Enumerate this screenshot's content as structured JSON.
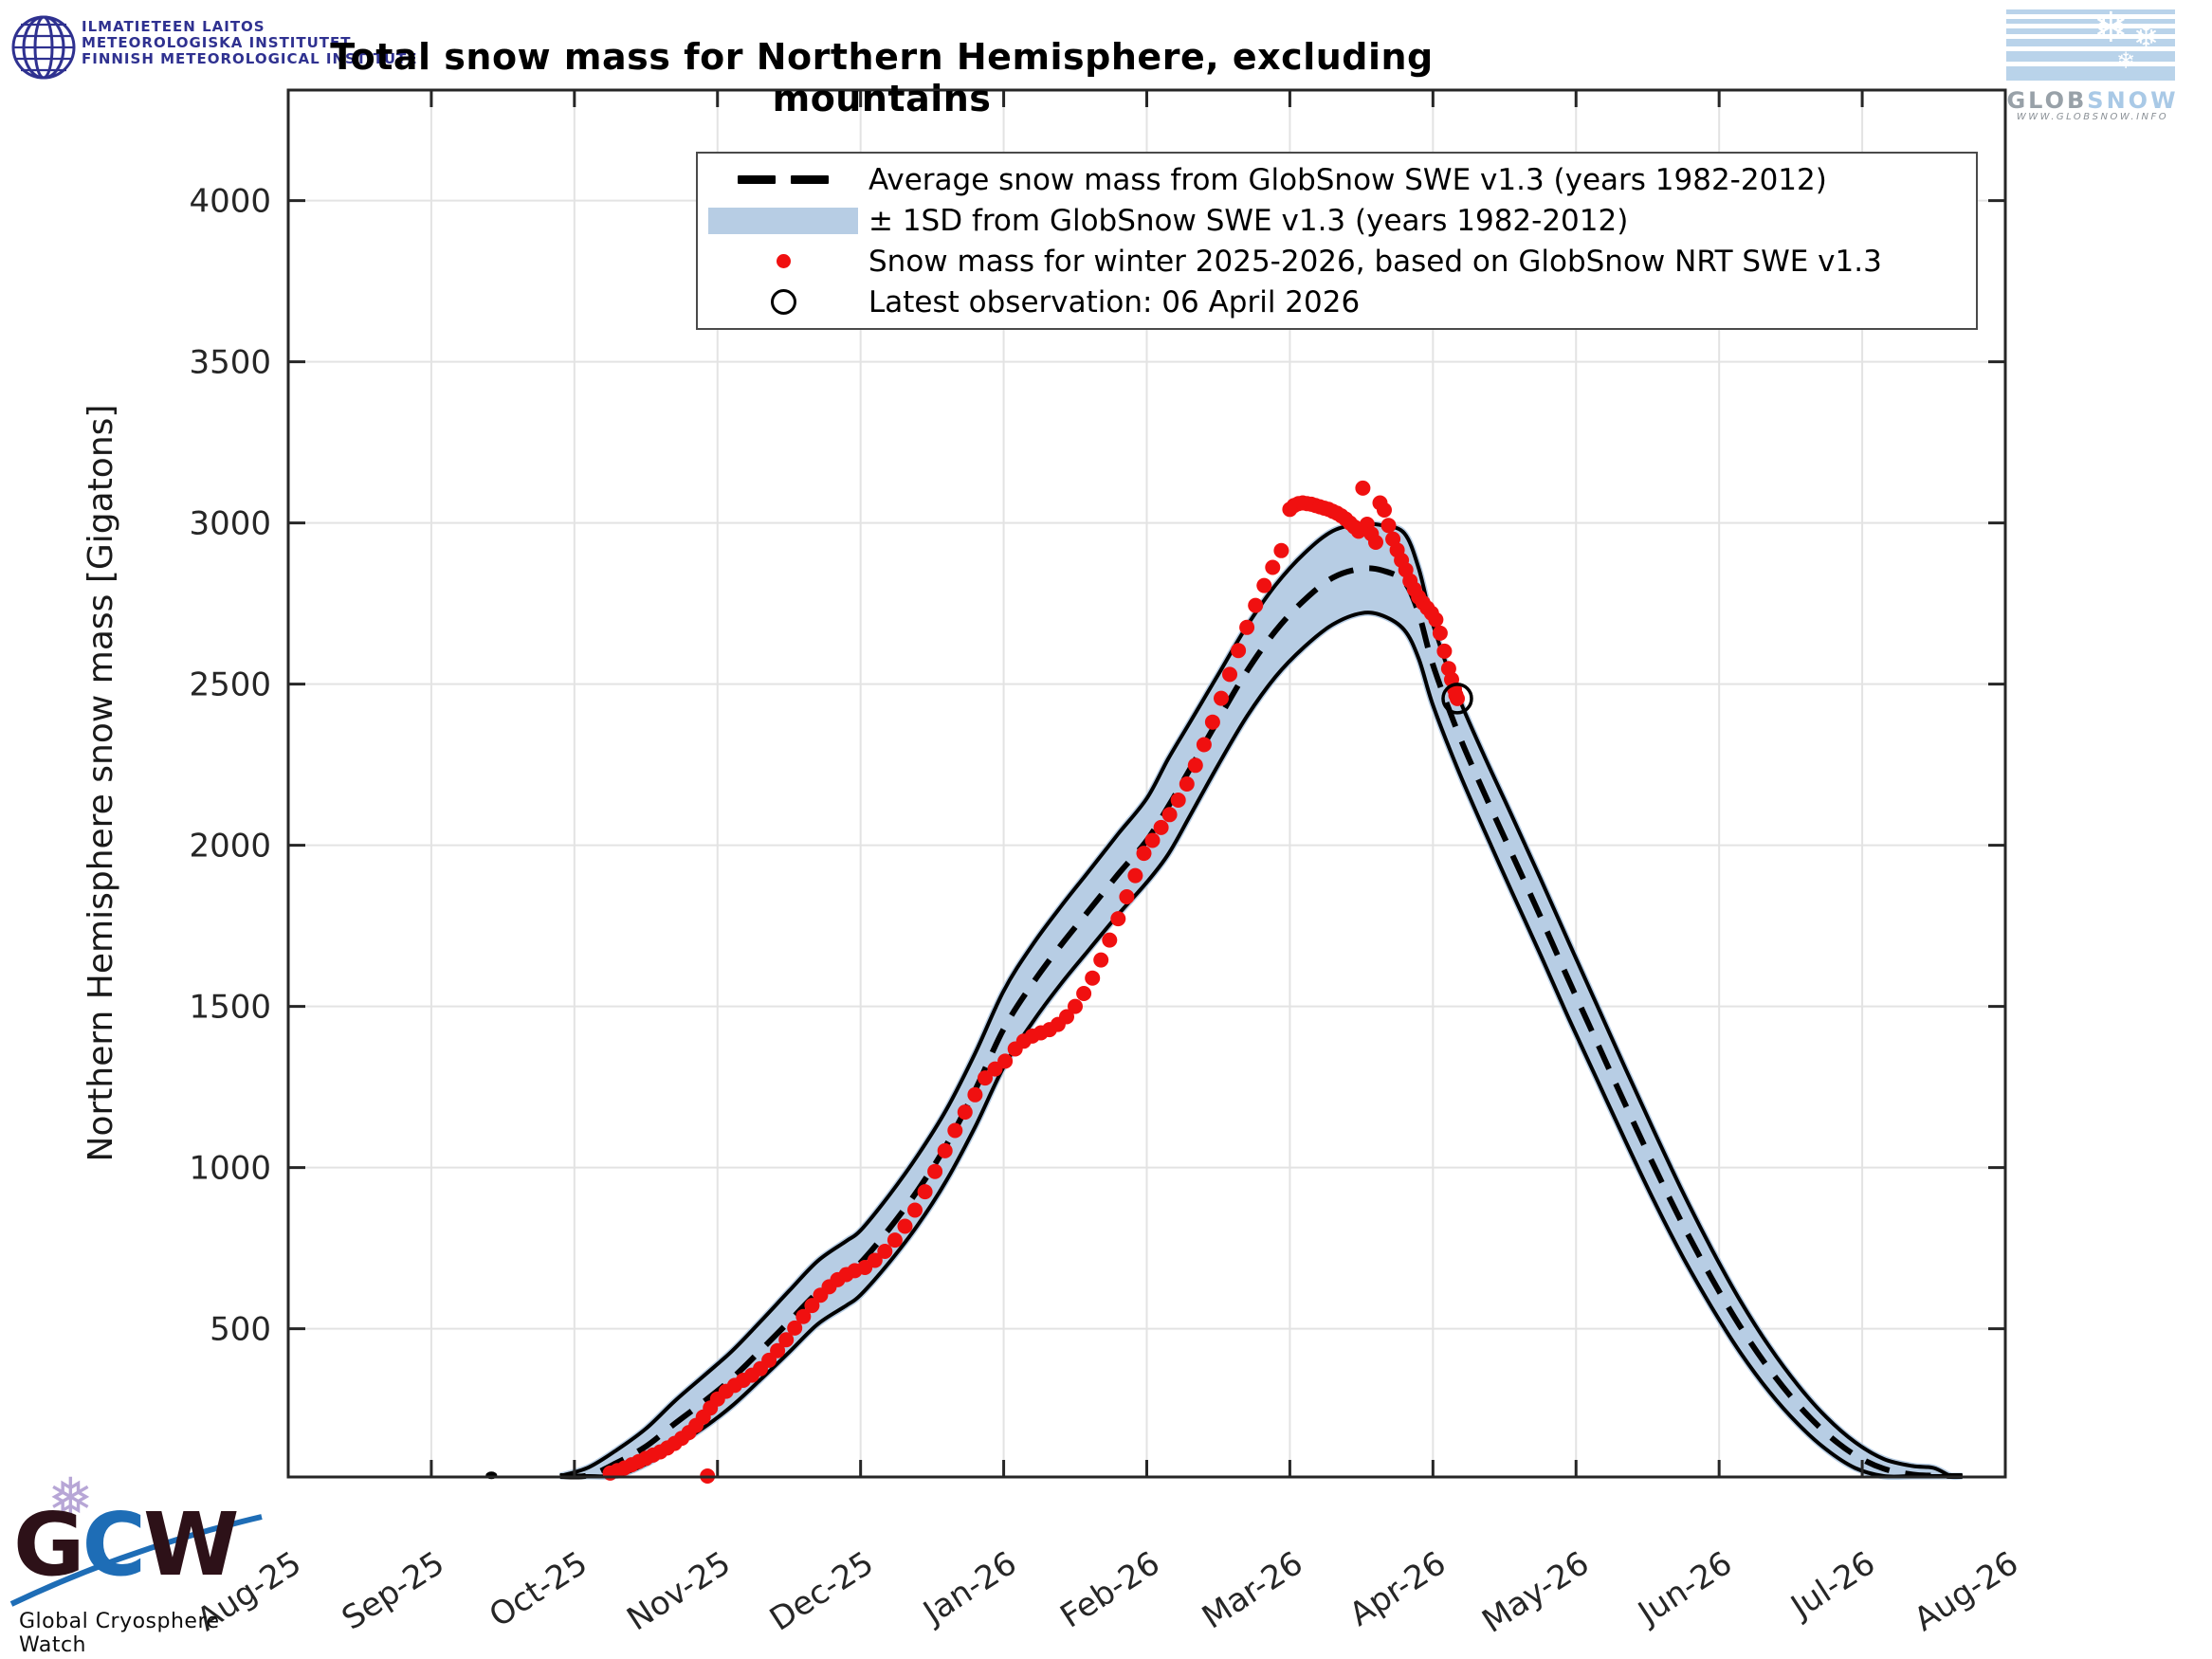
{
  "header": {
    "title": "Total snow mass for Northern Hemisphere, excluding mountains",
    "fmi": {
      "line1": "ILMATIETEEN LAITOS",
      "line2": "METEOROLOGISKA INSTITUTET",
      "line3": "FINNISH METEOROLOGICAL INSTITUTE"
    },
    "globsnow": {
      "wordmark_gray": "GLOB",
      "wordmark_blue": "SNOW",
      "url": "WWW.GLOBSNOW.INFO"
    }
  },
  "legend": {
    "items": [
      {
        "label": "Average snow mass from GlobSnow SWE v1.3 (years 1982-2012)",
        "marker": "dashed-black-line"
      },
      {
        "label": "± 1SD from GlobSnow SWE v1.3 (years 1982-2012)",
        "marker": "blue-band-swatch"
      },
      {
        "label": "Snow mass for winter 2025-2026, based on GlobSnow NRT SWE v1.3",
        "marker": "red-dot"
      },
      {
        "label": "Latest observation: 06 April 2026",
        "marker": "open-circle"
      }
    ]
  },
  "footer": {
    "gcw_g": "G",
    "gcw_c": "C",
    "gcw_w": "W",
    "gcw_caption": "Global Cryosphere Watch",
    "gcw_flake": "❅"
  },
  "chart_data": {
    "type": "line",
    "title": "Total snow mass for Northern Hemisphere, excluding mountains",
    "ylabel": "Northern Hemisphere snow mass [Gigatons]",
    "xlabel": "",
    "grid": true,
    "legend_position": "top-inside",
    "ylim": [
      50,
      4350
    ],
    "y_ticks": [
      500,
      1000,
      1500,
      2000,
      2500,
      3000,
      3500,
      4000
    ],
    "x_tick_labels": [
      "Aug-25",
      "Sep-25",
      "Oct-25",
      "Nov-25",
      "Dec-25",
      "Jan-26",
      "Feb-26",
      "Mar-26",
      "Apr-26",
      "May-26",
      "Jun-26",
      "Jul-26",
      "Aug-26"
    ],
    "x_unit": "x stored as months since 1 Aug 2025 (0 = Aug-25 tick, 12 = Aug-26 tick)",
    "colors": {
      "band": "#b7cde4",
      "mean_line": "#000000",
      "observations": "#f01010",
      "grid": "#e3e3e3",
      "axis": "#262626",
      "latest_circle": "#000000"
    },
    "band_points_m_mean_sd": [
      [
        1.9,
        15,
        10
      ],
      [
        2.1,
        45,
        25
      ],
      [
        2.3,
        85,
        40
      ],
      [
        2.5,
        135,
        55
      ],
      [
        2.7,
        205,
        70
      ],
      [
        2.9,
        272,
        80
      ],
      [
        3.1,
        345,
        85
      ],
      [
        3.3,
        432,
        90
      ],
      [
        3.5,
        522,
        95
      ],
      [
        3.7,
        612,
        98
      ],
      [
        3.9,
        672,
        100
      ],
      [
        4.0,
        705,
        100
      ],
      [
        4.2,
        810,
        104
      ],
      [
        4.4,
        930,
        108
      ],
      [
        4.6,
        1070,
        110
      ],
      [
        4.8,
        1240,
        114
      ],
      [
        5.0,
        1430,
        118
      ],
      [
        5.2,
        1570,
        120
      ],
      [
        5.4,
        1690,
        120
      ],
      [
        5.6,
        1800,
        122
      ],
      [
        5.8,
        1910,
        125
      ],
      [
        6.0,
        2015,
        130
      ],
      [
        6.15,
        2120,
        148
      ],
      [
        6.3,
        2235,
        145
      ],
      [
        6.5,
        2390,
        140
      ],
      [
        6.7,
        2540,
        140
      ],
      [
        6.9,
        2665,
        142
      ],
      [
        7.1,
        2760,
        145
      ],
      [
        7.3,
        2830,
        145
      ],
      [
        7.5,
        2858,
        138
      ],
      [
        7.65,
        2852,
        140
      ],
      [
        7.8,
        2818,
        150
      ],
      [
        7.9,
        2720,
        140
      ],
      [
        8.0,
        2560,
        125
      ],
      [
        8.17,
        2355,
        115
      ],
      [
        8.35,
        2170,
        115
      ],
      [
        8.55,
        1975,
        118
      ],
      [
        8.75,
        1780,
        118
      ],
      [
        8.95,
        1580,
        118
      ],
      [
        9.15,
        1385,
        115
      ],
      [
        9.35,
        1190,
        112
      ],
      [
        9.55,
        1000,
        108
      ],
      [
        9.75,
        820,
        100
      ],
      [
        9.95,
        655,
        90
      ],
      [
        10.15,
        505,
        80
      ],
      [
        10.35,
        375,
        70
      ],
      [
        10.55,
        265,
        60
      ],
      [
        10.75,
        175,
        50
      ],
      [
        10.95,
        108,
        40
      ],
      [
        11.15,
        66,
        30
      ],
      [
        11.35,
        48,
        26
      ],
      [
        11.5,
        44,
        24
      ],
      [
        11.62,
        18,
        14
      ],
      [
        11.7,
        6,
        5
      ]
    ],
    "observations_m_value": [
      [
        2.25,
        52
      ],
      [
        2.3,
        60
      ],
      [
        2.35,
        68
      ],
      [
        2.4,
        78
      ],
      [
        2.45,
        88
      ],
      [
        2.5,
        98
      ],
      [
        2.55,
        108
      ],
      [
        2.6,
        118
      ],
      [
        2.65,
        130
      ],
      [
        2.7,
        144
      ],
      [
        2.75,
        160
      ],
      [
        2.8,
        178
      ],
      [
        2.85,
        200
      ],
      [
        2.9,
        226
      ],
      [
        2.95,
        254
      ],
      [
        2.93,
        8
      ],
      [
        3.0,
        282
      ],
      [
        3.06,
        306
      ],
      [
        3.12,
        324
      ],
      [
        3.18,
        340
      ],
      [
        3.24,
        356
      ],
      [
        3.3,
        376
      ],
      [
        3.36,
        402
      ],
      [
        3.42,
        432
      ],
      [
        3.48,
        466
      ],
      [
        3.54,
        502
      ],
      [
        3.6,
        538
      ],
      [
        3.66,
        572
      ],
      [
        3.72,
        604
      ],
      [
        3.78,
        630
      ],
      [
        3.84,
        652
      ],
      [
        3.9,
        668
      ],
      [
        3.96,
        680
      ],
      [
        4.03,
        690
      ],
      [
        4.1,
        712
      ],
      [
        4.17,
        740
      ],
      [
        4.24,
        775
      ],
      [
        4.31,
        818
      ],
      [
        4.38,
        868
      ],
      [
        4.45,
        925
      ],
      [
        4.52,
        988
      ],
      [
        4.59,
        1052
      ],
      [
        4.66,
        1115
      ],
      [
        4.73,
        1172
      ],
      [
        4.8,
        1226
      ],
      [
        4.87,
        1278
      ],
      [
        4.94,
        1306
      ],
      [
        5.01,
        1330
      ],
      [
        5.08,
        1368
      ],
      [
        5.14,
        1392
      ],
      [
        5.2,
        1408
      ],
      [
        5.26,
        1418
      ],
      [
        5.32,
        1428
      ],
      [
        5.38,
        1444
      ],
      [
        5.44,
        1468
      ],
      [
        5.5,
        1500
      ],
      [
        5.56,
        1540
      ],
      [
        5.62,
        1588
      ],
      [
        5.68,
        1644
      ],
      [
        5.74,
        1706
      ],
      [
        5.8,
        1772
      ],
      [
        5.86,
        1840
      ],
      [
        5.92,
        1906
      ],
      [
        5.98,
        1975
      ],
      [
        6.04,
        2015
      ],
      [
        6.1,
        2055
      ],
      [
        6.16,
        2095
      ],
      [
        6.22,
        2140
      ],
      [
        6.28,
        2190
      ],
      [
        6.34,
        2248
      ],
      [
        6.4,
        2312
      ],
      [
        6.46,
        2382
      ],
      [
        6.52,
        2456
      ],
      [
        6.58,
        2530
      ],
      [
        6.64,
        2604
      ],
      [
        6.7,
        2676
      ],
      [
        6.76,
        2744
      ],
      [
        6.82,
        2806
      ],
      [
        6.88,
        2862
      ],
      [
        6.94,
        2914
      ],
      [
        7.0,
        3042
      ],
      [
        7.03,
        3054
      ],
      [
        7.06,
        3060
      ],
      [
        7.09,
        3062
      ],
      [
        7.12,
        3060
      ],
      [
        7.15,
        3058
      ],
      [
        7.18,
        3054
      ],
      [
        7.21,
        3050
      ],
      [
        7.24,
        3046
      ],
      [
        7.27,
        3042
      ],
      [
        7.3,
        3036
      ],
      [
        7.33,
        3030
      ],
      [
        7.36,
        3022
      ],
      [
        7.39,
        3012
      ],
      [
        7.42,
        3000
      ],
      [
        7.45,
        2988
      ],
      [
        7.48,
        2974
      ],
      [
        7.51,
        3108
      ],
      [
        7.54,
        2996
      ],
      [
        7.57,
        2966
      ],
      [
        7.6,
        2940
      ],
      [
        7.63,
        3062
      ],
      [
        7.66,
        3040
      ],
      [
        7.69,
        2992
      ],
      [
        7.72,
        2950
      ],
      [
        7.75,
        2916
      ],
      [
        7.78,
        2884
      ],
      [
        7.81,
        2854
      ],
      [
        7.84,
        2820
      ],
      [
        7.87,
        2794
      ],
      [
        7.9,
        2770
      ],
      [
        7.93,
        2752
      ],
      [
        7.96,
        2736
      ],
      [
        7.99,
        2720
      ],
      [
        8.02,
        2700
      ],
      [
        8.05,
        2658
      ],
      [
        8.08,
        2602
      ],
      [
        8.11,
        2548
      ],
      [
        8.13,
        2514
      ],
      [
        8.15,
        2484
      ],
      [
        8.16,
        2466
      ],
      [
        8.17,
        2455
      ]
    ],
    "latest_observation": {
      "m": 8.17,
      "value": 2455,
      "date_label": "06 April 2026"
    },
    "artifacts": [
      {
        "type": "dash-fragment-on-baseline",
        "m": 1.42,
        "value": 45
      }
    ]
  }
}
